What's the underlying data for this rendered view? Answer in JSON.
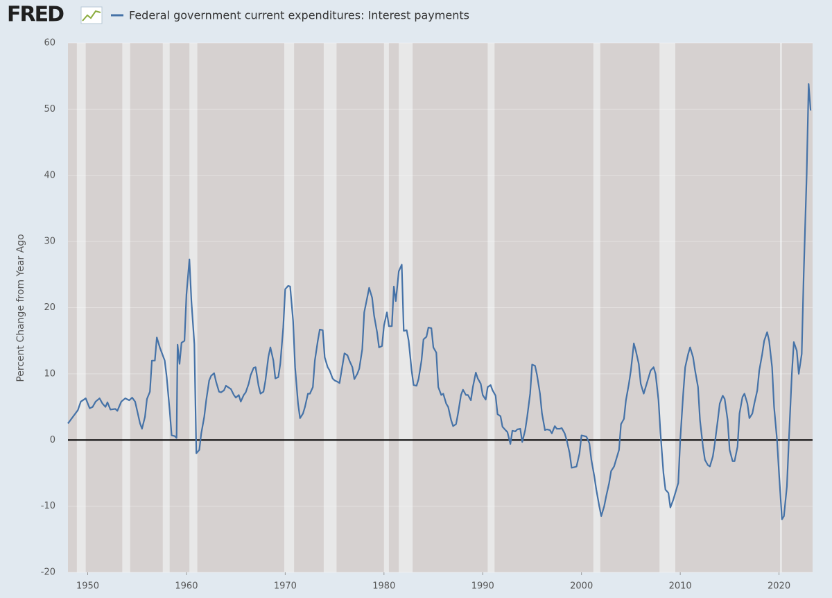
{
  "logo": "FRED",
  "chart_data": {
    "type": "line",
    "y_label": "Percent Change from Year Ago",
    "series": [
      {
        "name": "Federal government current expenditures: Interest payments",
        "color": "#4572a7",
        "x": [
          1948.0,
          1948.5,
          1949.0,
          1949.3,
          1949.8,
          1950.2,
          1950.5,
          1950.8,
          1951.2,
          1951.5,
          1951.8,
          1952.0,
          1952.3,
          1952.8,
          1953.0,
          1953.4,
          1953.8,
          1954.2,
          1954.5,
          1954.8,
          1955.0,
          1955.3,
          1955.5,
          1955.8,
          1956.0,
          1956.3,
          1956.5,
          1956.8,
          1957.0,
          1957.3,
          1957.5,
          1957.8,
          1958.0,
          1958.3,
          1958.5,
          1958.8,
          1959.0,
          1959.1,
          1959.3,
          1959.5,
          1959.8,
          1960.0,
          1960.3,
          1960.5,
          1960.8,
          1961.0,
          1961.3,
          1961.5,
          1961.8,
          1962.0,
          1962.3,
          1962.5,
          1962.8,
          1963.0,
          1963.3,
          1963.5,
          1963.8,
          1964.0,
          1964.3,
          1964.5,
          1964.8,
          1965.0,
          1965.3,
          1965.5,
          1965.8,
          1966.0,
          1966.3,
          1966.5,
          1966.8,
          1967.0,
          1967.3,
          1967.5,
          1967.8,
          1968.0,
          1968.3,
          1968.5,
          1968.8,
          1969.0,
          1969.3,
          1969.5,
          1969.8,
          1970.0,
          1970.3,
          1970.5,
          1970.8,
          1971.0,
          1971.3,
          1971.5,
          1971.8,
          1972.0,
          1972.3,
          1972.5,
          1972.8,
          1973.0,
          1973.3,
          1973.5,
          1973.8,
          1974.0,
          1974.3,
          1974.5,
          1974.8,
          1975.0,
          1975.3,
          1975.5,
          1975.8,
          1976.0,
          1976.3,
          1976.5,
          1976.8,
          1977.0,
          1977.3,
          1977.5,
          1977.8,
          1978.0,
          1978.3,
          1978.5,
          1978.8,
          1979.0,
          1979.3,
          1979.5,
          1979.8,
          1980.0,
          1980.3,
          1980.5,
          1980.8,
          1981.0,
          1981.2,
          1981.5,
          1981.8,
          1982.0,
          1982.3,
          1982.5,
          1982.8,
          1983.0,
          1983.3,
          1983.5,
          1983.8,
          1984.0,
          1984.3,
          1984.5,
          1984.8,
          1985.0,
          1985.3,
          1985.5,
          1985.8,
          1986.0,
          1986.3,
          1986.5,
          1986.8,
          1987.0,
          1987.3,
          1987.5,
          1987.8,
          1988.0,
          1988.3,
          1988.5,
          1988.8,
          1989.0,
          1989.3,
          1989.5,
          1989.8,
          1990.0,
          1990.3,
          1990.5,
          1990.8,
          1991.0,
          1991.3,
          1991.5,
          1991.8,
          1992.0,
          1992.3,
          1992.5,
          1992.8,
          1993.0,
          1993.3,
          1993.5,
          1993.8,
          1994.0,
          1994.3,
          1994.5,
          1994.8,
          1995.0,
          1995.3,
          1995.5,
          1995.8,
          1996.0,
          1996.3,
          1996.5,
          1996.8,
          1997.0,
          1997.3,
          1997.5,
          1997.8,
          1998.0,
          1998.3,
          1998.5,
          1998.8,
          1999.0,
          1999.3,
          1999.5,
          1999.8,
          2000.0,
          2000.3,
          2000.5,
          2000.8,
          2001.0,
          2001.3,
          2001.5,
          2001.8,
          2002.0,
          2002.3,
          2002.5,
          2002.8,
          2003.0,
          2003.3,
          2003.5,
          2003.8,
          2004.0,
          2004.3,
          2004.5,
          2004.8,
          2005.0,
          2005.3,
          2005.5,
          2005.8,
          2006.0,
          2006.3,
          2006.5,
          2006.8,
          2007.0,
          2007.3,
          2007.5,
          2007.8,
          2008.0,
          2008.3,
          2008.5,
          2008.8,
          2009.0,
          2009.3,
          2009.5,
          2009.8,
          2010.0,
          2010.3,
          2010.5,
          2010.8,
          2011.0,
          2011.3,
          2011.5,
          2011.8,
          2012.0,
          2012.3,
          2012.5,
          2012.8,
          2013.0,
          2013.3,
          2013.5,
          2013.8,
          2014.0,
          2014.3,
          2014.5,
          2014.8,
          2015.0,
          2015.3,
          2015.5,
          2015.8,
          2016.0,
          2016.3,
          2016.5,
          2016.8,
          2017.0,
          2017.3,
          2017.5,
          2017.8,
          2018.0,
          2018.3,
          2018.5,
          2018.8,
          2019.0,
          2019.3,
          2019.5,
          2019.8,
          2020.0,
          2020.3,
          2020.5,
          2020.8,
          2021.0,
          2021.3,
          2021.5,
          2021.8,
          2022.0,
          2022.3,
          2022.5,
          2022.8,
          2023.0,
          2023.2
        ],
        "values": [
          2.5,
          3.5,
          4.5,
          5.8,
          6.3,
          4.8,
          5.0,
          5.8,
          6.3,
          5.5,
          5.0,
          5.7,
          4.6,
          4.7,
          4.4,
          5.8,
          6.3,
          6.0,
          6.4,
          5.8,
          4.5,
          2.5,
          1.7,
          3.5,
          6.2,
          7.3,
          12.0,
          12.0,
          15.5,
          14.0,
          13.2,
          12.0,
          9.5,
          4.5,
          0.7,
          0.6,
          0.3,
          14.4,
          11.5,
          14.7,
          15.0,
          22.0,
          27.3,
          21.0,
          14.5,
          -2.0,
          -1.5,
          1.0,
          3.5,
          6.0,
          9.0,
          9.7,
          10.1,
          8.8,
          7.3,
          7.2,
          7.5,
          8.2,
          7.9,
          7.7,
          6.8,
          6.4,
          6.8,
          5.8,
          6.8,
          7.2,
          8.5,
          9.8,
          10.9,
          11.0,
          8.2,
          7.0,
          7.3,
          9.0,
          12.6,
          14.0,
          12.0,
          9.3,
          9.5,
          11.5,
          17.0,
          22.8,
          23.3,
          23.2,
          18.0,
          11.0,
          5.5,
          3.3,
          4.0,
          5.0,
          7.0,
          7.0,
          8.0,
          12.0,
          15.0,
          16.7,
          16.6,
          12.5,
          11.0,
          10.5,
          9.3,
          9.0,
          8.8,
          8.6,
          11.3,
          13.1,
          12.8,
          12.0,
          11.0,
          9.2,
          10.0,
          10.8,
          13.7,
          19.3,
          21.5,
          23.0,
          21.5,
          18.8,
          16.3,
          14.0,
          14.2,
          17.3,
          19.3,
          17.2,
          17.2,
          23.2,
          21.0,
          25.5,
          26.5,
          16.5,
          16.6,
          15.0,
          10.5,
          8.3,
          8.2,
          9.2,
          12.0,
          15.2,
          15.6,
          17.0,
          16.9,
          14.0,
          13.2,
          8.0,
          6.8,
          7.0,
          5.5,
          5.0,
          3.0,
          2.1,
          2.4,
          4.0,
          6.8,
          7.6,
          6.8,
          6.8,
          6.0,
          8.0,
          10.2,
          9.3,
          8.5,
          6.8,
          6.1,
          8.0,
          8.3,
          7.5,
          6.7,
          3.9,
          3.6,
          2.0,
          1.5,
          1.2,
          -0.6,
          1.4,
          1.3,
          1.6,
          1.7,
          -0.3,
          1.5,
          3.5,
          7.0,
          11.4,
          11.2,
          9.8,
          7.0,
          4.0,
          1.5,
          1.6,
          1.5,
          1.0,
          2.1,
          1.7,
          1.7,
          1.8,
          1.0,
          0.0,
          -2.0,
          -4.2,
          -4.1,
          -4.0,
          -2.0,
          0.7,
          0.6,
          0.5,
          -0.5,
          -3.0,
          -5.5,
          -7.5,
          -10.0,
          -11.5,
          -10.0,
          -8.5,
          -6.5,
          -4.7,
          -4.0,
          -3.0,
          -1.5,
          2.4,
          3.2,
          6.0,
          8.5,
          10.5,
          14.6,
          13.5,
          11.5,
          8.5,
          7.0,
          8.0,
          9.5,
          10.5,
          11.0,
          10.0,
          6.0,
          1.0,
          -5.0,
          -7.5,
          -8.0,
          -10.2,
          -9.0,
          -8.0,
          -6.5,
          0.0,
          7.0,
          11.0,
          13.0,
          14.0,
          12.5,
          10.5,
          8.0,
          3.0,
          -1.0,
          -3.0,
          -3.8,
          -4.0,
          -2.5,
          -0.5,
          3.0,
          5.5,
          6.7,
          6.2,
          3.0,
          -1.5,
          -3.2,
          -3.2,
          -1.0,
          4.0,
          6.5,
          7.0,
          5.5,
          3.3,
          4.0,
          5.5,
          7.5,
          10.5,
          13.0,
          15.0,
          16.3,
          15.0,
          11.0,
          5.0,
          0.0,
          -5.0,
          -12.0,
          -11.5,
          -7.0,
          0.0,
          10.0,
          14.8,
          13.5,
          10.0,
          13.0,
          25.0,
          40.0,
          53.8,
          49.8
        ]
      }
    ],
    "recessions": [
      [
        1948.9,
        1949.8
      ],
      [
        1953.5,
        1954.3
      ],
      [
        1957.6,
        1958.3
      ],
      [
        1960.3,
        1961.1
      ],
      [
        1969.9,
        1970.9
      ],
      [
        1973.9,
        1975.2
      ],
      [
        1980.0,
        1980.5
      ],
      [
        1981.5,
        1982.9
      ],
      [
        1990.5,
        1991.2
      ],
      [
        2001.2,
        2001.9
      ],
      [
        2007.9,
        2009.5
      ],
      [
        2020.1,
        2020.3
      ]
    ],
    "xlim": [
      1948.0,
      2023.4
    ],
    "xticks": [
      1950,
      1960,
      1970,
      1980,
      1990,
      2000,
      2010,
      2020
    ],
    "ylim": [
      -20,
      60
    ],
    "yticks": [
      -20,
      -10,
      0,
      10,
      20,
      30,
      40,
      50,
      60
    ],
    "zero_line": 0,
    "grid": true
  }
}
